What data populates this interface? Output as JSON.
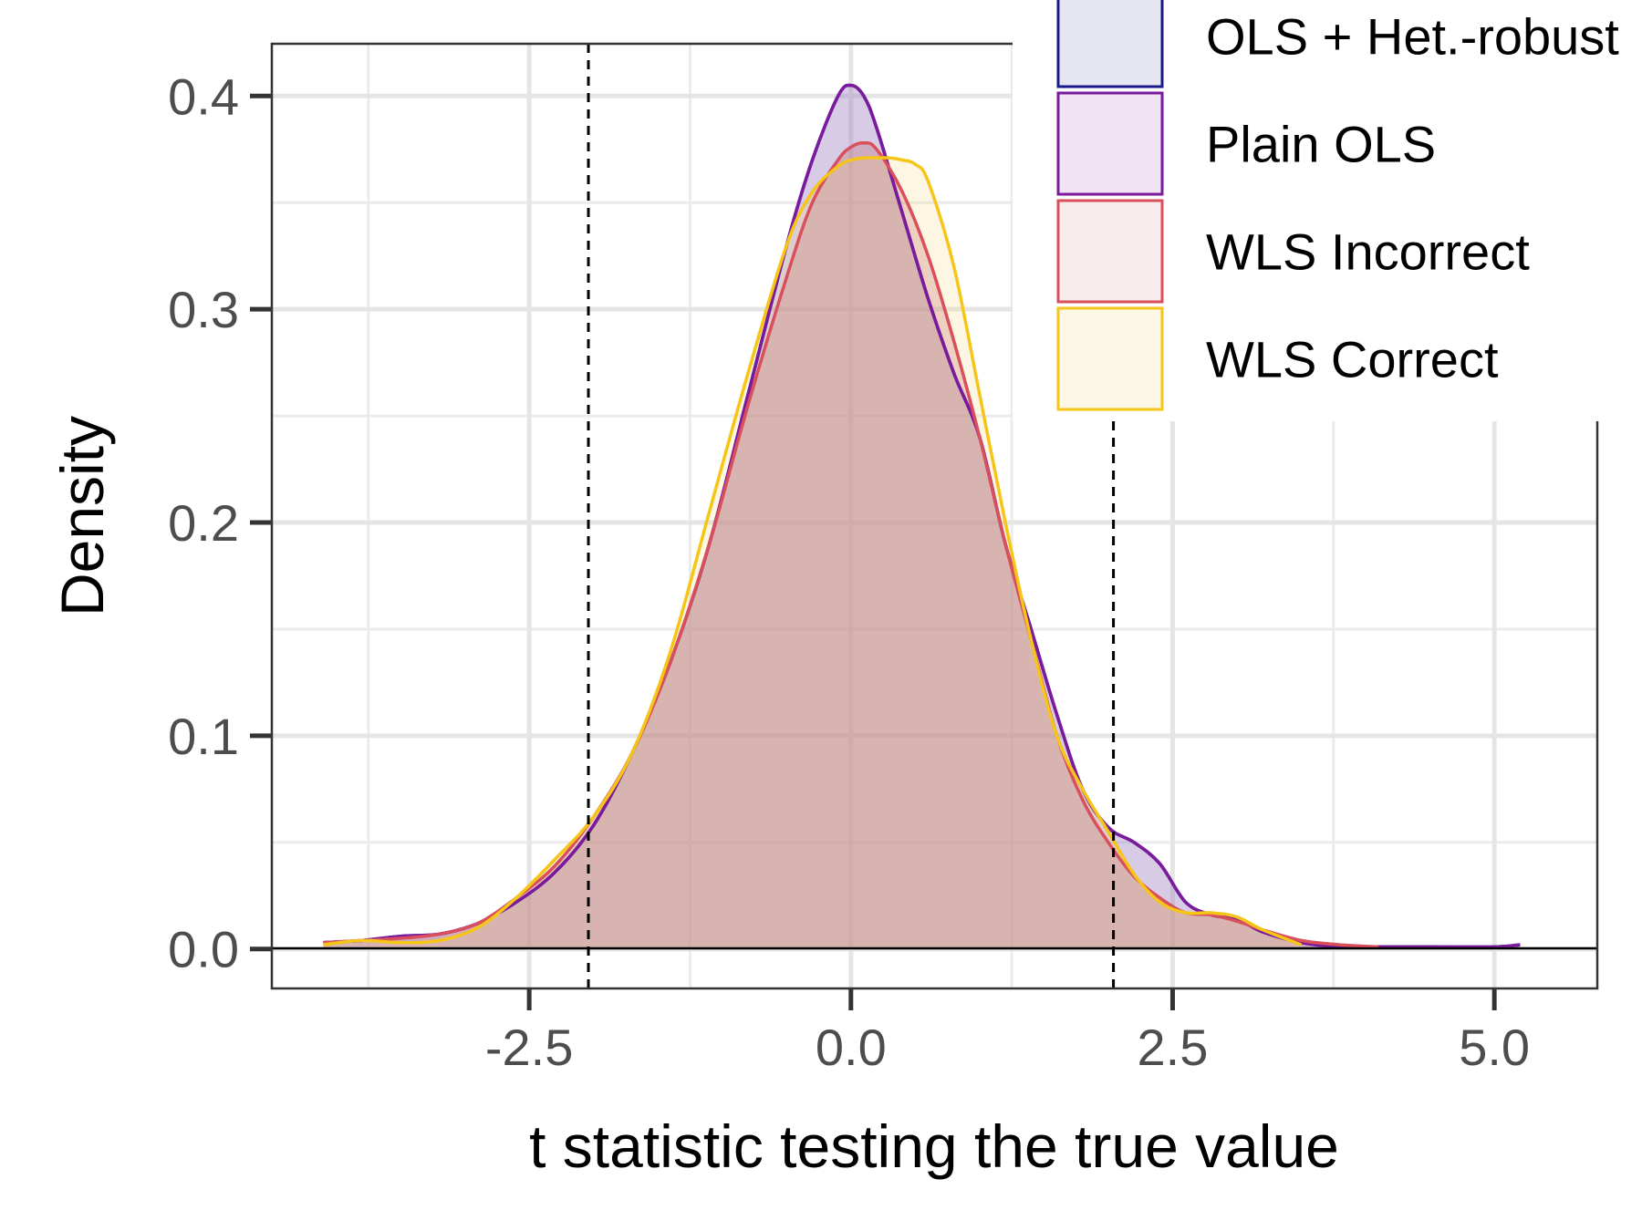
{
  "chart_data": {
    "type": "area",
    "title": "",
    "xlabel": "t statistic testing the true value",
    "ylabel": "Density",
    "xlim": [
      -4.5,
      5.8
    ],
    "ylim": [
      -0.0185,
      0.4245
    ],
    "x_ticks": [
      -2.5,
      0.0,
      2.5,
      5.0
    ],
    "x_tick_labels": [
      "-2.5",
      "0.0",
      "2.5",
      "5.0"
    ],
    "y_ticks": [
      0.0,
      0.1,
      0.2,
      0.3,
      0.4
    ],
    "y_tick_labels": [
      "0.0",
      "0.1",
      "0.2",
      "0.3",
      "0.4"
    ],
    "grid": true,
    "legend_position": "top-right",
    "reference_lines": {
      "x": [
        -2.04,
        2.04
      ],
      "style": "dashed"
    },
    "series": [
      {
        "name": "OLS + Het.-robust",
        "color": "#1a1a8c",
        "fill": "#e6e6f5",
        "x": [
          -4.1,
          -3.8,
          -3.5,
          -3.2,
          -2.9,
          -2.6,
          -2.3,
          -2.0,
          -1.7,
          -1.4,
          -1.1,
          -0.8,
          -0.5,
          -0.3,
          -0.1,
          0.0,
          0.1,
          0.2,
          0.4,
          0.6,
          0.8,
          1.0,
          1.2,
          1.4,
          1.6,
          1.8,
          2.0,
          2.2,
          2.4,
          2.6,
          2.8,
          3.0,
          3.2,
          3.5,
          3.8,
          4.1,
          4.5,
          5.0,
          5.2
        ],
        "y": [
          0.003,
          0.004,
          0.006,
          0.007,
          0.012,
          0.022,
          0.036,
          0.058,
          0.092,
          0.135,
          0.19,
          0.26,
          0.33,
          0.37,
          0.4,
          0.405,
          0.4,
          0.385,
          0.345,
          0.305,
          0.27,
          0.24,
          0.19,
          0.15,
          0.11,
          0.075,
          0.057,
          0.05,
          0.04,
          0.022,
          0.016,
          0.014,
          0.008,
          0.003,
          0.001,
          0.001,
          0.001,
          0.001,
          0.002
        ]
      },
      {
        "name": "Plain OLS",
        "color": "#7b1a9c",
        "fill": "#efe3f3",
        "x": [
          -4.1,
          -3.8,
          -3.5,
          -3.2,
          -2.9,
          -2.6,
          -2.3,
          -2.0,
          -1.7,
          -1.4,
          -1.1,
          -0.8,
          -0.5,
          -0.3,
          -0.1,
          0.0,
          0.1,
          0.2,
          0.4,
          0.6,
          0.8,
          1.0,
          1.2,
          1.4,
          1.6,
          1.8,
          2.0,
          2.2,
          2.4,
          2.6,
          2.8,
          3.0,
          3.2,
          3.5,
          3.8,
          4.1,
          4.5,
          5.0,
          5.2
        ],
        "y": [
          0.003,
          0.004,
          0.006,
          0.007,
          0.012,
          0.022,
          0.036,
          0.058,
          0.092,
          0.135,
          0.19,
          0.26,
          0.33,
          0.37,
          0.4,
          0.405,
          0.4,
          0.385,
          0.345,
          0.305,
          0.27,
          0.24,
          0.19,
          0.15,
          0.11,
          0.075,
          0.057,
          0.05,
          0.04,
          0.022,
          0.016,
          0.014,
          0.008,
          0.003,
          0.001,
          0.001,
          0.001,
          0.001,
          0.002
        ]
      },
      {
        "name": "WLS Incorrect",
        "color": "#d94f5c",
        "fill": "#f8eaea",
        "x": [
          -4.1,
          -3.8,
          -3.5,
          -3.2,
          -2.9,
          -2.6,
          -2.3,
          -2.0,
          -1.7,
          -1.4,
          -1.1,
          -0.8,
          -0.5,
          -0.3,
          -0.1,
          0.0,
          0.1,
          0.2,
          0.4,
          0.6,
          0.8,
          1.0,
          1.2,
          1.4,
          1.6,
          1.8,
          2.0,
          2.2,
          2.4,
          2.6,
          2.8,
          3.0,
          3.2,
          3.5,
          3.8,
          4.1
        ],
        "y": [
          0.003,
          0.004,
          0.005,
          0.007,
          0.012,
          0.024,
          0.039,
          0.062,
          0.092,
          0.135,
          0.19,
          0.255,
          0.315,
          0.35,
          0.37,
          0.376,
          0.378,
          0.375,
          0.355,
          0.325,
          0.285,
          0.24,
          0.19,
          0.145,
          0.1,
          0.07,
          0.05,
          0.034,
          0.024,
          0.017,
          0.016,
          0.013,
          0.009,
          0.004,
          0.002,
          0.001
        ]
      },
      {
        "name": "WLS Correct",
        "color": "#f5c518",
        "fill": "#fdf6e3",
        "x": [
          -4.1,
          -3.8,
          -3.5,
          -3.2,
          -2.9,
          -2.6,
          -2.3,
          -2.0,
          -1.7,
          -1.4,
          -1.1,
          -0.8,
          -0.5,
          -0.3,
          -0.1,
          0.0,
          0.1,
          0.2,
          0.3,
          0.4,
          0.5,
          0.6,
          0.8,
          1.0,
          1.2,
          1.4,
          1.6,
          1.8,
          2.0,
          2.2,
          2.4,
          2.6,
          2.8,
          3.0,
          3.2,
          3.5
        ],
        "y": [
          0.002,
          0.004,
          0.003,
          0.004,
          0.01,
          0.024,
          0.042,
          0.062,
          0.092,
          0.14,
          0.205,
          0.27,
          0.33,
          0.355,
          0.367,
          0.37,
          0.371,
          0.371,
          0.371,
          0.37,
          0.368,
          0.36,
          0.32,
          0.26,
          0.2,
          0.145,
          0.1,
          0.075,
          0.055,
          0.035,
          0.022,
          0.017,
          0.017,
          0.015,
          0.009,
          0.002
        ]
      }
    ]
  }
}
